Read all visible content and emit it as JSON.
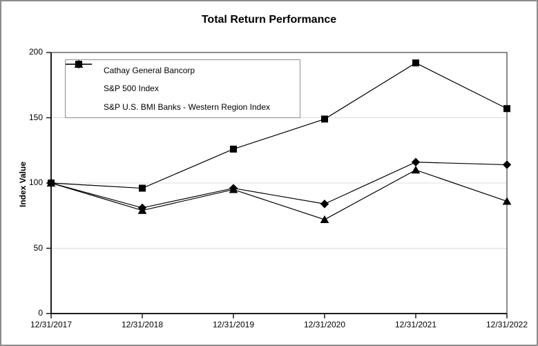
{
  "window": {
    "background": "#ffffff",
    "frame_border_color": "#8c8c8c"
  },
  "chart_data": {
    "type": "line",
    "title": "Total Return Performance",
    "ylabel": "Index Value",
    "xlabel": "",
    "categories": [
      "12/31/2017",
      "12/31/2018",
      "12/31/2019",
      "12/31/2020",
      "12/31/2021",
      "12/31/2022"
    ],
    "series": [
      {
        "name": "Cathay General Bancorp",
        "marker": "diamond",
        "color": "#000000",
        "values": [
          100,
          81,
          96,
          84,
          116,
          114
        ]
      },
      {
        "name": "S&P 500 Index",
        "marker": "square",
        "color": "#000000",
        "values": [
          100,
          96,
          126,
          149,
          192,
          157
        ]
      },
      {
        "name": "S&P U.S. BMI Banks - Western Region Index",
        "marker": "triangle",
        "color": "#000000",
        "values": [
          100,
          79,
          95,
          72,
          110,
          86
        ]
      }
    ],
    "ylim": [
      0,
      200
    ],
    "yticks": [
      0,
      50,
      100,
      150,
      200
    ],
    "grid_values": [
      50,
      100,
      150
    ],
    "grid_on": true,
    "grid_color": "#dcdcdc",
    "axis_color": "#1a1a1a",
    "legend_position": "top-left-inside"
  }
}
